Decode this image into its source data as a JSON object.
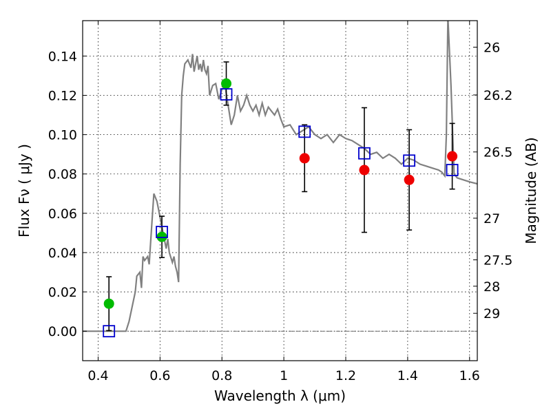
{
  "chart_data": {
    "type": "scatter",
    "xlabel": "Wavelength  λ (μm)",
    "ylabel": "Flux  Fν  ( μJy )",
    "y2label": "Magnitude (AB)",
    "xlim": [
      0.35,
      1.625
    ],
    "ylim": [
      -0.015,
      0.158
    ],
    "x_ticks": [
      0.4,
      0.6,
      0.8,
      1.0,
      1.2,
      1.4,
      1.6
    ],
    "x_tick_labels": [
      "0.4",
      "0.6",
      "0.8",
      "1",
      "1.2",
      "1.4",
      "1.6"
    ],
    "y_ticks": [
      0.0,
      0.02,
      0.04,
      0.06,
      0.08,
      0.1,
      0.12,
      0.14
    ],
    "y_tick_labels": [
      "0.00",
      "0.02",
      "0.04",
      "0.06",
      "0.08",
      "0.10",
      "0.12",
      "0.14"
    ],
    "y2_ticks": [
      {
        "label": "26",
        "flux": 0.1445
      },
      {
        "label": "26.2",
        "flux": 0.1202
      },
      {
        "label": "26.5",
        "flux": 0.0912
      },
      {
        "label": "27",
        "flux": 0.0575
      },
      {
        "label": "27.5",
        "flux": 0.0363
      },
      {
        "label": "28",
        "flux": 0.0229
      },
      {
        "label": "29",
        "flux": 0.0091
      }
    ],
    "grid": true,
    "colors": {
      "model": "#808080",
      "green_points": "#00bb00",
      "red_points": "#ee0000",
      "model_photometry": "#0000cc",
      "errorbars": "#000000"
    },
    "series": [
      {
        "type": "line",
        "x": [
          0.35,
          0.49,
          0.5,
          0.52,
          0.525,
          0.535,
          0.54,
          0.545,
          0.55,
          0.56,
          0.565,
          0.575,
          0.58,
          0.59,
          0.6,
          0.61,
          0.62,
          0.625,
          0.63,
          0.64,
          0.645,
          0.65,
          0.655,
          0.66,
          0.665,
          0.67,
          0.675,
          0.68,
          0.69,
          0.7,
          0.705,
          0.71,
          0.72,
          0.725,
          0.73,
          0.735,
          0.74,
          0.745,
          0.75,
          0.755,
          0.76,
          0.77,
          0.78,
          0.79,
          0.8,
          0.81,
          0.82,
          0.83,
          0.84,
          0.85,
          0.86,
          0.87,
          0.88,
          0.89,
          0.9,
          0.91,
          0.92,
          0.93,
          0.94,
          0.95,
          0.96,
          0.97,
          0.98,
          0.99,
          1.0,
          1.02,
          1.04,
          1.06,
          1.08,
          1.1,
          1.12,
          1.14,
          1.16,
          1.18,
          1.2,
          1.22,
          1.24,
          1.26,
          1.28,
          1.3,
          1.32,
          1.34,
          1.36,
          1.38,
          1.4,
          1.42,
          1.44,
          1.46,
          1.48,
          1.5,
          1.51,
          1.52,
          1.525,
          1.53,
          1.54,
          1.55,
          1.56,
          1.58,
          1.6,
          1.625
        ],
        "y": [
          0.0,
          0.0,
          0.005,
          0.02,
          0.028,
          0.03,
          0.022,
          0.038,
          0.036,
          0.038,
          0.034,
          0.058,
          0.07,
          0.066,
          0.058,
          0.05,
          0.042,
          0.047,
          0.04,
          0.035,
          0.038,
          0.033,
          0.03,
          0.025,
          0.085,
          0.12,
          0.13,
          0.136,
          0.138,
          0.134,
          0.141,
          0.132,
          0.14,
          0.133,
          0.136,
          0.132,
          0.138,
          0.133,
          0.131,
          0.135,
          0.12,
          0.125,
          0.126,
          0.118,
          0.123,
          0.125,
          0.115,
          0.105,
          0.11,
          0.12,
          0.112,
          0.115,
          0.12,
          0.115,
          0.112,
          0.115,
          0.11,
          0.116,
          0.11,
          0.114,
          0.112,
          0.11,
          0.113,
          0.108,
          0.104,
          0.105,
          0.1,
          0.102,
          0.104,
          0.1,
          0.098,
          0.1,
          0.096,
          0.1,
          0.098,
          0.097,
          0.095,
          0.093,
          0.09,
          0.091,
          0.088,
          0.09,
          0.088,
          0.085,
          0.088,
          0.087,
          0.085,
          0.084,
          0.083,
          0.082,
          0.081,
          0.079,
          0.1,
          0.16,
          0.125,
          0.08,
          0.078,
          0.077,
          0.076,
          0.075
        ]
      },
      {
        "type": "errorbar",
        "marker": "circle",
        "color": "green",
        "x": [
          0.435,
          0.606,
          0.814
        ],
        "y": [
          0.014,
          0.048,
          0.126
        ],
        "yerr": [
          0.0137,
          0.0105,
          0.011
        ]
      },
      {
        "type": "errorbar",
        "marker": "circle",
        "color": "red",
        "x": [
          1.067,
          1.26,
          1.405,
          1.544
        ],
        "y": [
          0.088,
          0.082,
          0.077,
          0.089
        ],
        "yerr_low": [
          0.017,
          0.0317,
          0.0255,
          0.0167
        ],
        "yerr_high": [
          0.017,
          0.0317,
          0.0255,
          0.0167
        ]
      },
      {
        "type": "scatter",
        "marker": "square-open",
        "color": "blue",
        "x": [
          0.435,
          0.606,
          0.814,
          1.067,
          1.26,
          1.405,
          1.544
        ],
        "y": [
          0.0,
          0.0505,
          0.1205,
          0.1015,
          0.0905,
          0.0868,
          0.082
        ]
      }
    ]
  }
}
